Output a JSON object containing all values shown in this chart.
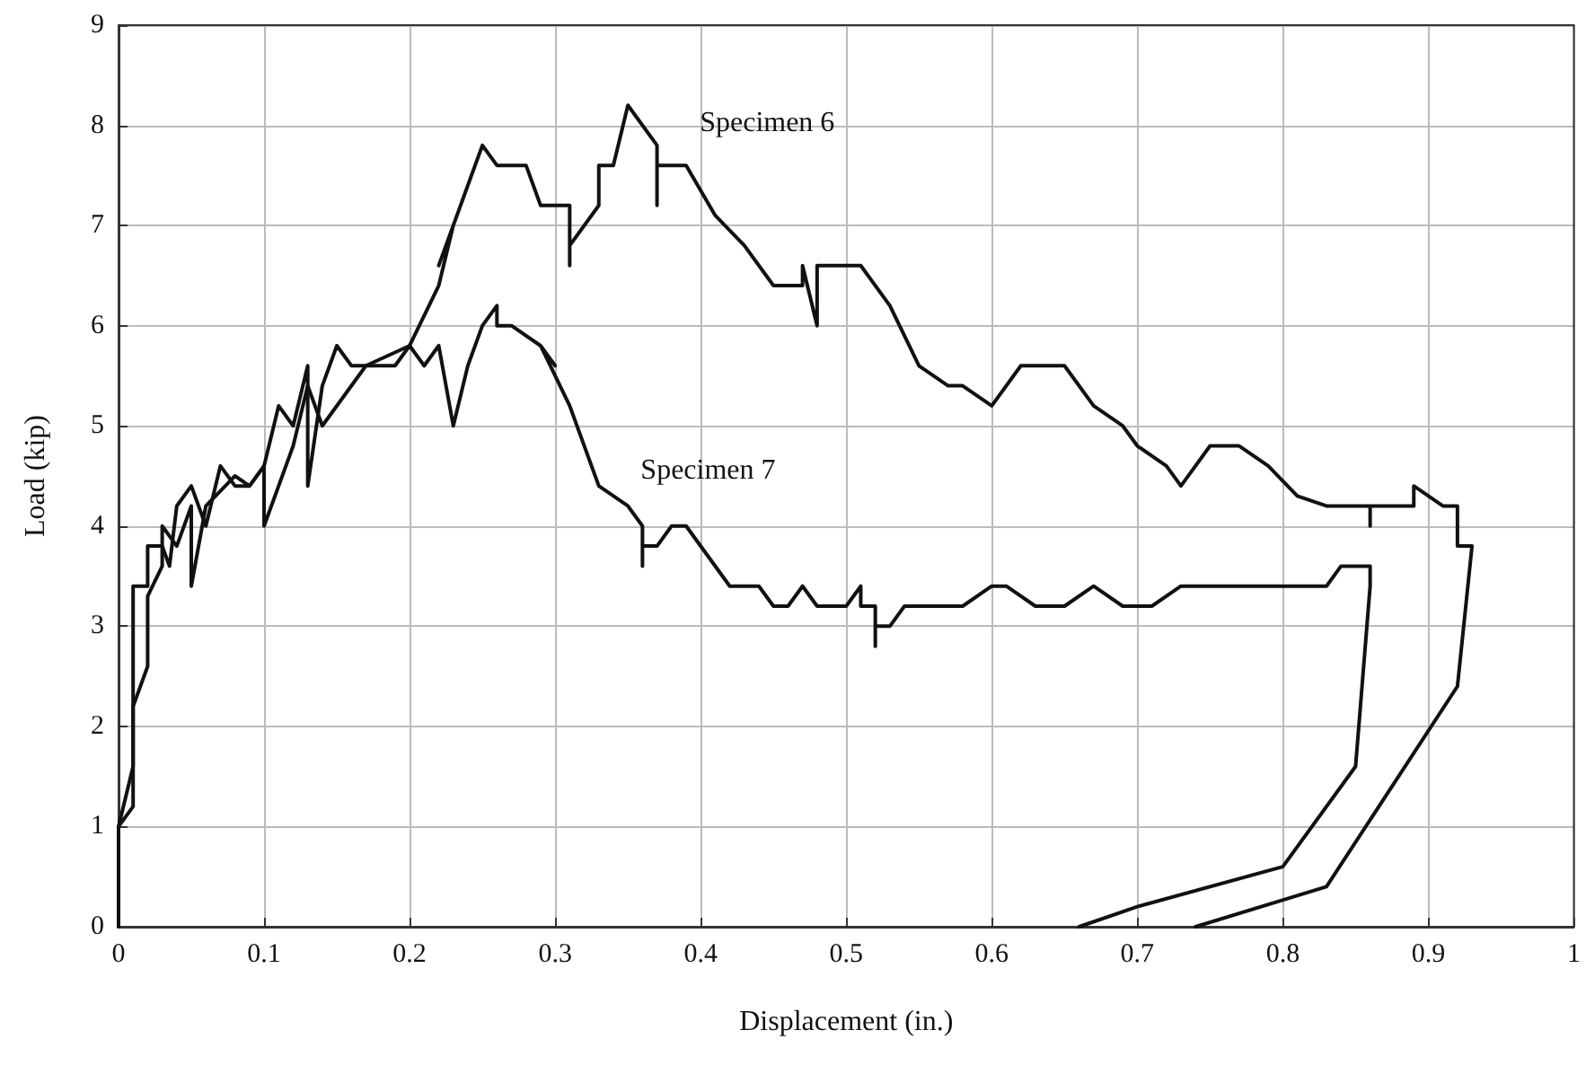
{
  "chart_data": {
    "type": "line",
    "xlabel": "Displacement (in.)",
    "ylabel": "Load (kip)",
    "xlim": [
      0,
      1
    ],
    "xticks": [
      0,
      0.1,
      0.2,
      0.3,
      0.4,
      0.5,
      0.6,
      0.7,
      0.8,
      0.9,
      1
    ],
    "ylim": [
      0,
      9
    ],
    "yticks": [
      0,
      1,
      2,
      3,
      4,
      5,
      6,
      7,
      8,
      9
    ],
    "grid": true,
    "legend": false,
    "marker": "none",
    "line_style": "solid",
    "series": [
      {
        "name": "Specimen 6",
        "color": "#111111",
        "x": [
          0,
          0,
          0.01,
          0.01,
          0.02,
          0.02,
          0.03,
          0.035,
          0.04,
          0.05,
          0.06,
          0.07,
          0.08,
          0.09,
          0.1,
          0.1,
          0.12,
          0.13,
          0.14,
          0.17,
          0.2,
          0.22,
          0.23,
          0.22,
          0.24,
          0.25,
          0.26,
          0.28,
          0.29,
          0.31,
          0.31,
          0.31,
          0.33,
          0.33,
          0.34,
          0.35,
          0.37,
          0.37,
          0.37,
          0.39,
          0.41,
          0.43,
          0.45,
          0.47,
          0.47,
          0.48,
          0.48,
          0.51,
          0.53,
          0.55,
          0.57,
          0.58,
          0.6,
          0.62,
          0.65,
          0.67,
          0.69,
          0.7,
          0.72,
          0.73,
          0.75,
          0.77,
          0.79,
          0.81,
          0.83,
          0.86,
          0.86,
          0.86,
          0.89,
          0.89,
          0.91,
          0.92,
          0.92,
          0.93,
          0.92,
          0.83,
          0.74
        ],
        "values": [
          0,
          1,
          1.6,
          3.4,
          3.4,
          3.8,
          3.8,
          3.6,
          4.2,
          4.4,
          4,
          4.6,
          4.4,
          4.4,
          4.6,
          4,
          4.8,
          5.4,
          5,
          5.6,
          5.8,
          6.4,
          7,
          6.6,
          7.4,
          7.8,
          7.6,
          7.6,
          7.2,
          7.2,
          6.6,
          6.8,
          7.2,
          7.6,
          7.6,
          8.2,
          7.8,
          7.2,
          7.6,
          7.6,
          7.1,
          6.8,
          6.4,
          6.4,
          6.6,
          6,
          6.6,
          6.6,
          6.2,
          5.6,
          5.4,
          5.4,
          5.2,
          5.6,
          5.6,
          5.2,
          5,
          4.8,
          4.6,
          4.4,
          4.8,
          4.8,
          4.6,
          4.3,
          4.2,
          4.2,
          4,
          4.2,
          4.2,
          4.4,
          4.2,
          4.2,
          3.8,
          3.8,
          2.4,
          0.4,
          0
        ]
      },
      {
        "name": "Specimen 7",
        "color": "#111111",
        "x": [
          0,
          0,
          0.01,
          0.01,
          0.02,
          0.02,
          0.03,
          0.03,
          0.04,
          0.05,
          0.05,
          0.06,
          0.08,
          0.09,
          0.1,
          0.11,
          0.12,
          0.13,
          0.13,
          0.14,
          0.15,
          0.16,
          0.19,
          0.2,
          0.21,
          0.22,
          0.23,
          0.24,
          0.25,
          0.26,
          0.26,
          0.27,
          0.29,
          0.3,
          0.29,
          0.31,
          0.33,
          0.35,
          0.36,
          0.36,
          0.36,
          0.37,
          0.38,
          0.39,
          0.42,
          0.44,
          0.45,
          0.46,
          0.47,
          0.48,
          0.5,
          0.51,
          0.51,
          0.52,
          0.52,
          0.52,
          0.53,
          0.54,
          0.58,
          0.6,
          0.61,
          0.63,
          0.65,
          0.67,
          0.69,
          0.71,
          0.73,
          0.83,
          0.84,
          0.86,
          0.86,
          0.85,
          0.8,
          0.7,
          0.66
        ],
        "values": [
          0,
          1,
          1.2,
          2.2,
          2.6,
          3.3,
          3.6,
          4,
          3.8,
          4.2,
          3.4,
          4.2,
          4.5,
          4.4,
          4.6,
          5.2,
          5,
          5.6,
          4.4,
          5.4,
          5.8,
          5.6,
          5.6,
          5.8,
          5.6,
          5.8,
          5,
          5.6,
          6,
          6.2,
          6,
          6,
          5.8,
          5.6,
          5.8,
          5.2,
          4.4,
          4.2,
          4,
          3.6,
          3.8,
          3.8,
          4,
          4,
          3.4,
          3.4,
          3.2,
          3.2,
          3.4,
          3.2,
          3.2,
          3.4,
          3.2,
          3.2,
          2.8,
          3,
          3,
          3.2,
          3.2,
          3.4,
          3.4,
          3.2,
          3.2,
          3.4,
          3.2,
          3.2,
          3.4,
          3.4,
          3.6,
          3.6,
          3.4,
          1.6,
          0.6,
          0.2,
          0
        ]
      }
    ]
  }
}
